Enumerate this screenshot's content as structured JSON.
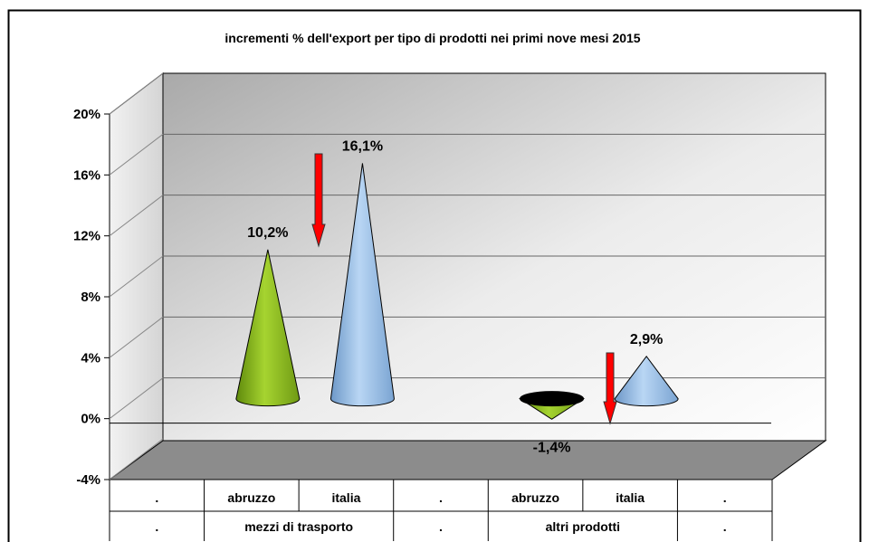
{
  "chart_data": {
    "type": "bar",
    "shape": "cone-3d",
    "title": "incrementi % dell'export per tipo di prodotti nei primi nove mesi 2015",
    "xlabel": "",
    "ylabel": "",
    "ylim": [
      -4,
      20
    ],
    "yticks": [
      -4,
      0,
      4,
      8,
      12,
      16,
      20
    ],
    "ytick_labels": [
      "-4%",
      "0%",
      "4%",
      "8%",
      "12%",
      "16%",
      "20%"
    ],
    "grid": true,
    "legend": "none",
    "category_rows": [
      [
        ".",
        "abruzzo",
        "italia",
        ".",
        "abruzzo",
        "italia",
        "."
      ],
      [
        ".",
        "mezzi di trasporto",
        ".",
        "altri prodotti",
        "."
      ]
    ],
    "points": [
      {
        "group": "mezzi di trasporto",
        "category": "abruzzo",
        "value": 10.2,
        "label": "10,2%",
        "color": "#9acd32"
      },
      {
        "group": "mezzi di trasporto",
        "category": "italia",
        "value": 16.1,
        "label": "16,1%",
        "color": "#9cc3ec"
      },
      {
        "group": "altri prodotti",
        "category": "abruzzo",
        "value": -1.4,
        "label": "-1,4%",
        "color": "#9acd32"
      },
      {
        "group": "altri prodotti",
        "category": "italia",
        "value": 2.9,
        "label": "2,9%",
        "color": "#9cc3ec"
      }
    ],
    "annotations": [
      {
        "type": "arrow-down",
        "color": "#ff0000",
        "near": "mezzi di trasporto"
      },
      {
        "type": "arrow-down",
        "color": "#ff0000",
        "near": "altri prodotti"
      }
    ]
  }
}
